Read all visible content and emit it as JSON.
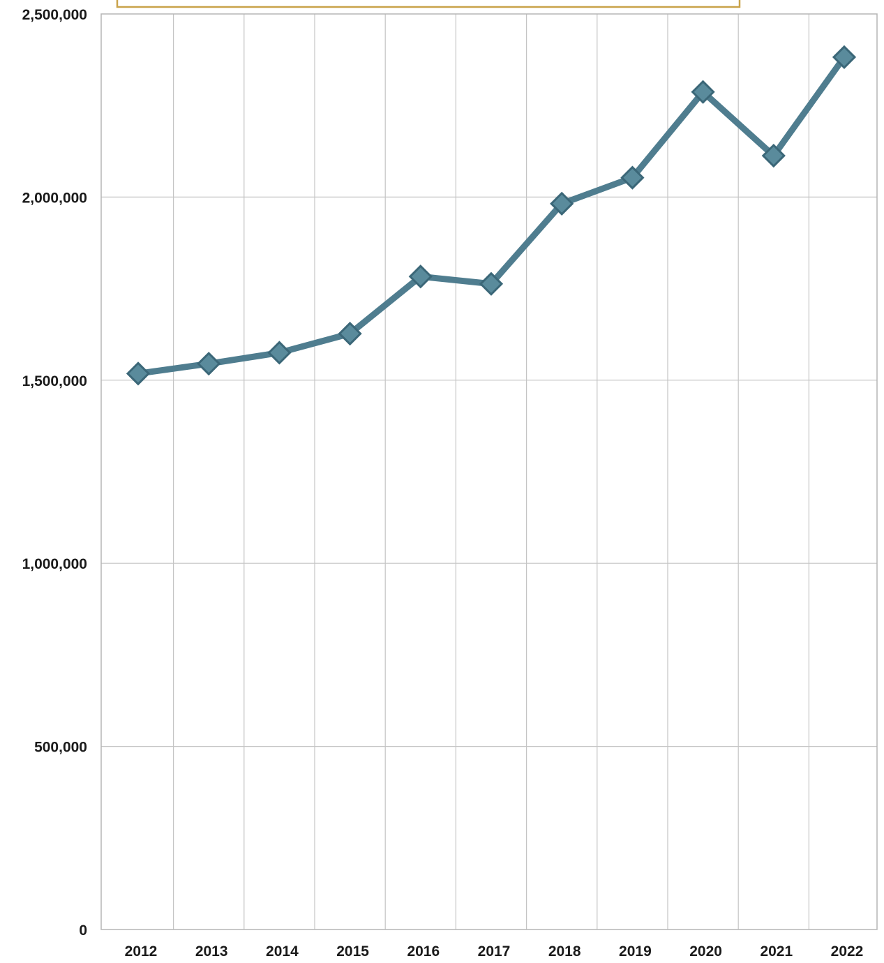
{
  "chart_data": {
    "type": "line",
    "categories": [
      "2012",
      "2013",
      "2014",
      "2015",
      "2016",
      "2017",
      "2018",
      "2019",
      "2020",
      "2021",
      "2022"
    ],
    "series": [
      {
        "values": [
          1518000,
          1545000,
          1575000,
          1627000,
          1783000,
          1763000,
          1982000,
          2053000,
          2287000,
          2113000,
          2382000
        ]
      }
    ],
    "y_ticks": [
      "0",
      "500,000",
      "1,000,000",
      "1,500,000",
      "2,000,000",
      "2,500,000"
    ],
    "y_tick_values": [
      0,
      500000,
      1000000,
      1500000,
      2000000,
      2500000
    ],
    "ylim": [
      0,
      2500000
    ],
    "grid": true,
    "marker": "diamond",
    "colors": {
      "line": "#4f7d8f",
      "marker_fill": "#5a8b9c",
      "marker_stroke": "#3b6778",
      "title_box": "#c9a34a"
    }
  }
}
